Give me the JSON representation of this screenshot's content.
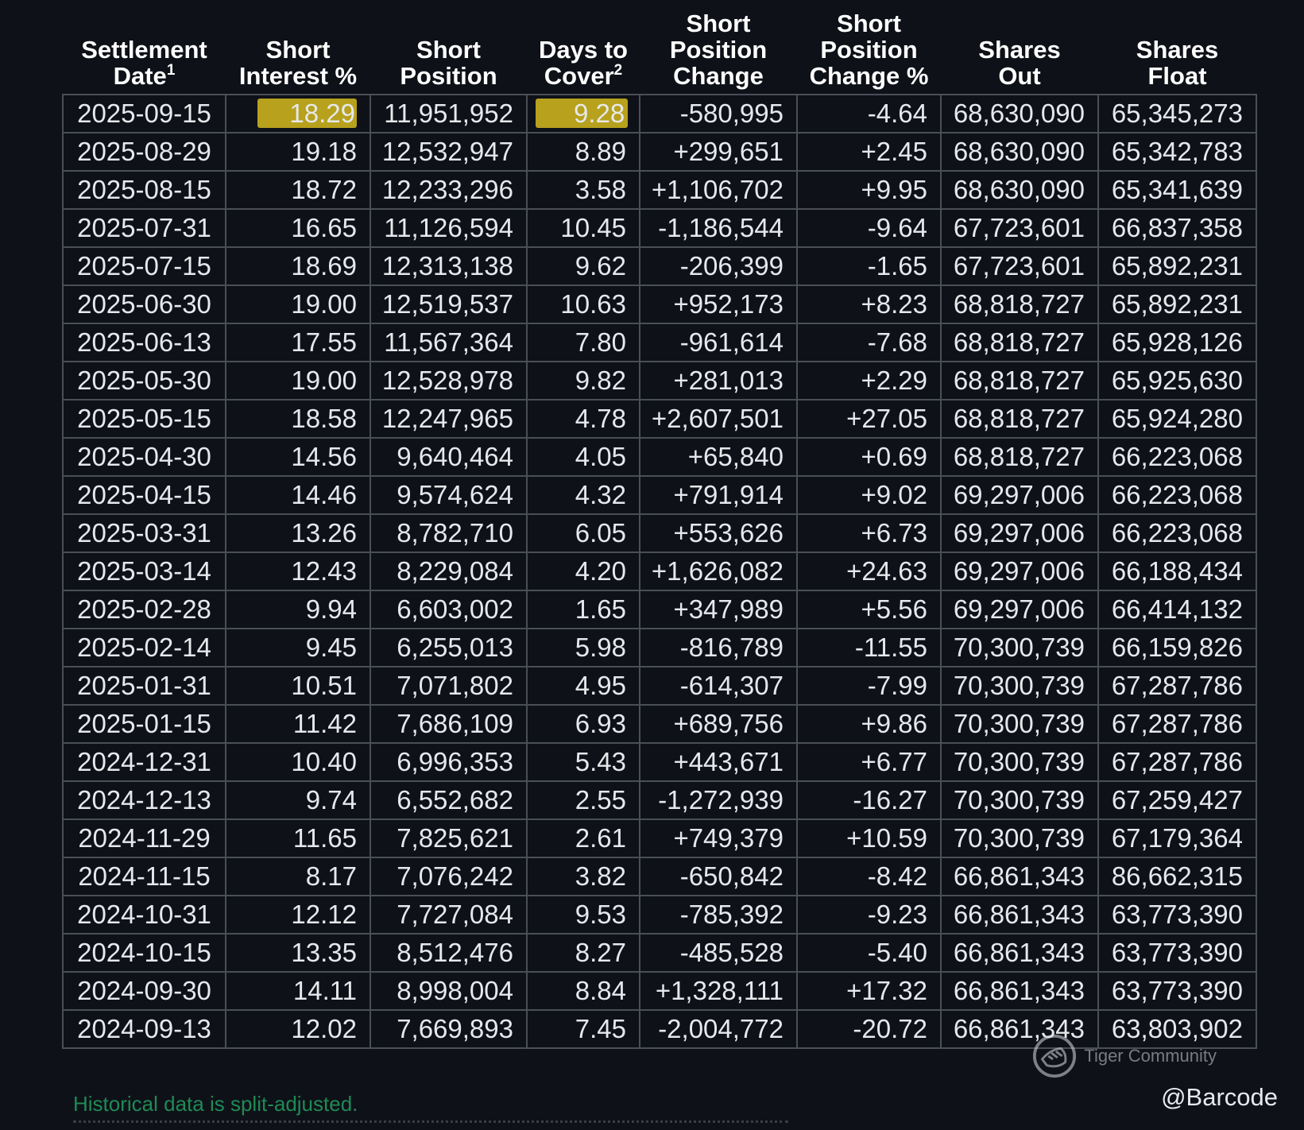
{
  "table": {
    "headers": [
      {
        "text": "Settlement\nDate",
        "sup": "1"
      },
      {
        "text": "Short\nInterest %",
        "sup": ""
      },
      {
        "text": "Short\nPosition",
        "sup": ""
      },
      {
        "text": "Days to\nCover",
        "sup": "2"
      },
      {
        "text": "Short\nPosition\nChange",
        "sup": ""
      },
      {
        "text": "Short\nPosition\nChange %",
        "sup": ""
      },
      {
        "text": "Shares\nOut",
        "sup": ""
      },
      {
        "text": "Shares\nFloat",
        "sup": ""
      }
    ],
    "highlighted_cells": [
      [
        0,
        1
      ],
      [
        0,
        3
      ]
    ],
    "highlight_color": "#b7a11d",
    "rows": [
      [
        "2025-09-15",
        "18.29",
        "11,951,952",
        "9.28",
        "-580,995",
        "-4.64",
        "68,630,090",
        "65,345,273"
      ],
      [
        "2025-08-29",
        "19.18",
        "12,532,947",
        "8.89",
        "+299,651",
        "+2.45",
        "68,630,090",
        "65,342,783"
      ],
      [
        "2025-08-15",
        "18.72",
        "12,233,296",
        "3.58",
        "+1,106,702",
        "+9.95",
        "68,630,090",
        "65,341,639"
      ],
      [
        "2025-07-31",
        "16.65",
        "11,126,594",
        "10.45",
        "-1,186,544",
        "-9.64",
        "67,723,601",
        "66,837,358"
      ],
      [
        "2025-07-15",
        "18.69",
        "12,313,138",
        "9.62",
        "-206,399",
        "-1.65",
        "67,723,601",
        "65,892,231"
      ],
      [
        "2025-06-30",
        "19.00",
        "12,519,537",
        "10.63",
        "+952,173",
        "+8.23",
        "68,818,727",
        "65,892,231"
      ],
      [
        "2025-06-13",
        "17.55",
        "11,567,364",
        "7.80",
        "-961,614",
        "-7.68",
        "68,818,727",
        "65,928,126"
      ],
      [
        "2025-05-30",
        "19.00",
        "12,528,978",
        "9.82",
        "+281,013",
        "+2.29",
        "68,818,727",
        "65,925,630"
      ],
      [
        "2025-05-15",
        "18.58",
        "12,247,965",
        "4.78",
        "+2,607,501",
        "+27.05",
        "68,818,727",
        "65,924,280"
      ],
      [
        "2025-04-30",
        "14.56",
        "9,640,464",
        "4.05",
        "+65,840",
        "+0.69",
        "68,818,727",
        "66,223,068"
      ],
      [
        "2025-04-15",
        "14.46",
        "9,574,624",
        "4.32",
        "+791,914",
        "+9.02",
        "69,297,006",
        "66,223,068"
      ],
      [
        "2025-03-31",
        "13.26",
        "8,782,710",
        "6.05",
        "+553,626",
        "+6.73",
        "69,297,006",
        "66,223,068"
      ],
      [
        "2025-03-14",
        "12.43",
        "8,229,084",
        "4.20",
        "+1,626,082",
        "+24.63",
        "69,297,006",
        "66,188,434"
      ],
      [
        "2025-02-28",
        "9.94",
        "6,603,002",
        "1.65",
        "+347,989",
        "+5.56",
        "69,297,006",
        "66,414,132"
      ],
      [
        "2025-02-14",
        "9.45",
        "6,255,013",
        "5.98",
        "-816,789",
        "-11.55",
        "70,300,739",
        "66,159,826"
      ],
      [
        "2025-01-31",
        "10.51",
        "7,071,802",
        "4.95",
        "-614,307",
        "-7.99",
        "70,300,739",
        "67,287,786"
      ],
      [
        "2025-01-15",
        "11.42",
        "7,686,109",
        "6.93",
        "+689,756",
        "+9.86",
        "70,300,739",
        "67,287,786"
      ],
      [
        "2024-12-31",
        "10.40",
        "6,996,353",
        "5.43",
        "+443,671",
        "+6.77",
        "70,300,739",
        "67,287,786"
      ],
      [
        "2024-12-13",
        "9.74",
        "6,552,682",
        "2.55",
        "-1,272,939",
        "-16.27",
        "70,300,739",
        "67,259,427"
      ],
      [
        "2024-11-29",
        "11.65",
        "7,825,621",
        "2.61",
        "+749,379",
        "+10.59",
        "70,300,739",
        "67,179,364"
      ],
      [
        "2024-11-15",
        "8.17",
        "7,076,242",
        "3.82",
        "-650,842",
        "-8.42",
        "66,861,343",
        "86,662,315"
      ],
      [
        "2024-10-31",
        "12.12",
        "7,727,084",
        "9.53",
        "-785,392",
        "-9.23",
        "66,861,343",
        "63,773,390"
      ],
      [
        "2024-10-15",
        "13.35",
        "8,512,476",
        "8.27",
        "-485,528",
        "-5.40",
        "66,861,343",
        "63,773,390"
      ],
      [
        "2024-09-30",
        "14.11",
        "8,998,004",
        "8.84",
        "+1,328,111",
        "+17.32",
        "66,861,343",
        "63,773,390"
      ],
      [
        "2024-09-13",
        "12.02",
        "7,669,893",
        "7.45",
        "-2,004,772",
        "-20.72",
        "66,861,343",
        "63,803,902"
      ]
    ]
  },
  "footnote": "Historical data is split-adjusted.",
  "watermark": {
    "text": "Tiger Community",
    "icon": "tiger-community-logo-icon"
  },
  "handle": "@Barcode"
}
